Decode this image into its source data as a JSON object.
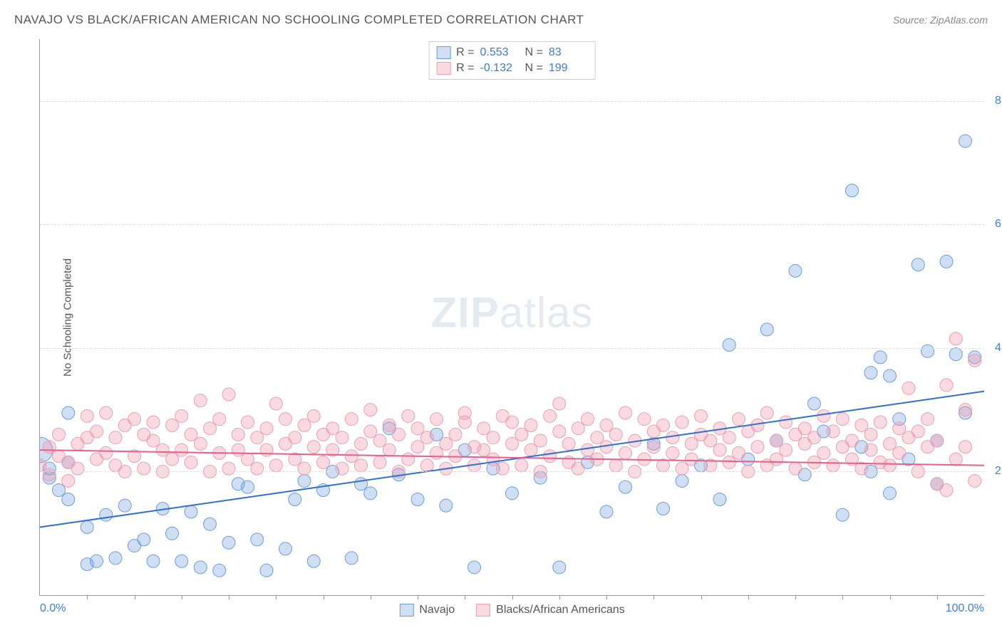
{
  "title": "NAVAJO VS BLACK/AFRICAN AMERICAN NO SCHOOLING COMPLETED CORRELATION CHART",
  "source": "Source: ZipAtlas.com",
  "ylabel": "No Schooling Completed",
  "watermark_bold": "ZIP",
  "watermark_rest": "atlas",
  "xlim": [
    0,
    100
  ],
  "ylim": [
    0,
    9
  ],
  "x_axis_label_left": "0.0%",
  "x_axis_label_right": "100.0%",
  "y_ticks": [
    {
      "v": 2.0,
      "label": "2.0%"
    },
    {
      "v": 4.0,
      "label": "4.0%"
    },
    {
      "v": 6.0,
      "label": "6.0%"
    },
    {
      "v": 8.0,
      "label": "8.0%"
    }
  ],
  "x_tick_count": 20,
  "grid_color": "#dddddd",
  "axis_color": "#999999",
  "background_color": "#ffffff",
  "series": [
    {
      "name": "Navajo",
      "label": "Navajo",
      "color_fill": "rgba(120,160,220,0.35)",
      "color_stroke": "#6a9edb",
      "marker_r": 9,
      "trend_color": "#2e6fd0",
      "trend_width": 2,
      "trend_y_at_xmin": 1.1,
      "trend_y_at_xmax": 3.3,
      "R": "0.553",
      "N": "83",
      "points": [
        [
          0,
          2.35,
          18
        ],
        [
          3,
          2.15
        ],
        [
          1,
          1.9
        ],
        [
          1,
          2.05
        ],
        [
          2,
          1.7
        ],
        [
          3,
          1.55
        ],
        [
          3,
          2.95
        ],
        [
          5,
          1.1
        ],
        [
          5,
          0.5
        ],
        [
          6,
          0.55
        ],
        [
          7,
          1.3
        ],
        [
          8,
          0.6
        ],
        [
          9,
          1.45
        ],
        [
          10,
          0.8
        ],
        [
          11,
          0.9
        ],
        [
          12,
          0.55
        ],
        [
          13,
          1.4
        ],
        [
          14,
          1.0
        ],
        [
          15,
          0.55
        ],
        [
          16,
          1.35
        ],
        [
          17,
          0.45
        ],
        [
          18,
          1.15
        ],
        [
          19,
          0.4
        ],
        [
          20,
          0.85
        ],
        [
          21,
          1.8
        ],
        [
          22,
          1.75
        ],
        [
          23,
          0.9
        ],
        [
          24,
          0.4
        ],
        [
          26,
          0.75
        ],
        [
          27,
          1.55
        ],
        [
          28,
          1.85
        ],
        [
          29,
          0.55
        ],
        [
          30,
          1.7
        ],
        [
          31,
          2.0
        ],
        [
          33,
          0.6
        ],
        [
          34,
          1.8
        ],
        [
          35,
          1.65
        ],
        [
          37,
          2.7
        ],
        [
          38,
          1.95
        ],
        [
          40,
          1.55
        ],
        [
          42,
          2.6
        ],
        [
          43,
          1.45
        ],
        [
          45,
          2.35
        ],
        [
          46,
          0.45
        ],
        [
          48,
          2.05
        ],
        [
          50,
          1.65
        ],
        [
          53,
          1.9
        ],
        [
          55,
          0.45
        ],
        [
          58,
          2.15
        ],
        [
          60,
          1.35
        ],
        [
          62,
          1.75
        ],
        [
          65,
          2.45
        ],
        [
          66,
          1.4
        ],
        [
          68,
          1.85
        ],
        [
          70,
          2.1
        ],
        [
          72,
          1.55
        ],
        [
          73,
          4.05
        ],
        [
          75,
          2.2
        ],
        [
          77,
          4.3
        ],
        [
          78,
          2.5
        ],
        [
          80,
          5.25
        ],
        [
          81,
          1.95
        ],
        [
          82,
          3.1
        ],
        [
          83,
          2.65
        ],
        [
          85,
          1.3
        ],
        [
          86,
          6.55
        ],
        [
          87,
          2.4
        ],
        [
          88,
          2.0
        ],
        [
          89,
          3.85
        ],
        [
          90,
          3.55
        ],
        [
          91,
          2.85
        ],
        [
          92,
          2.2
        ],
        [
          93,
          5.35
        ],
        [
          94,
          3.95
        ],
        [
          95,
          1.8
        ],
        [
          96,
          5.4
        ],
        [
          97,
          3.9
        ],
        [
          98,
          2.95
        ],
        [
          98,
          7.35
        ],
        [
          99,
          3.85
        ],
        [
          95,
          2.5
        ],
        [
          90,
          1.65
        ],
        [
          88,
          3.6
        ]
      ]
    },
    {
      "name": "Blacks/African Americans",
      "label": "Blacks/African Americans",
      "color_fill": "rgba(240,150,170,0.35)",
      "color_stroke": "#ea9fb3",
      "marker_r": 9,
      "trend_color": "#e65f8a",
      "trend_width": 2,
      "trend_y_at_xmin": 2.35,
      "trend_y_at_xmax": 2.1,
      "R": "-0.132",
      "N": "199",
      "points": [
        [
          0,
          2.1
        ],
        [
          1,
          2.4
        ],
        [
          1,
          1.95
        ],
        [
          2,
          2.25
        ],
        [
          2,
          2.6
        ],
        [
          3,
          1.85
        ],
        [
          3,
          2.15
        ],
        [
          4,
          2.05
        ],
        [
          4,
          2.45
        ],
        [
          5,
          2.55
        ],
        [
          5,
          2.9
        ],
        [
          6,
          2.2
        ],
        [
          6,
          2.65
        ],
        [
          7,
          2.3
        ],
        [
          7,
          2.95
        ],
        [
          8,
          2.1
        ],
        [
          8,
          2.55
        ],
        [
          9,
          2.0
        ],
        [
          9,
          2.75
        ],
        [
          10,
          2.25
        ],
        [
          10,
          2.85
        ],
        [
          11,
          2.6
        ],
        [
          11,
          2.05
        ],
        [
          12,
          2.5
        ],
        [
          12,
          2.8
        ],
        [
          13,
          2.35
        ],
        [
          13,
          2.0
        ],
        [
          14,
          2.75
        ],
        [
          14,
          2.2
        ],
        [
          15,
          2.9
        ],
        [
          15,
          2.35
        ],
        [
          16,
          2.6
        ],
        [
          16,
          2.15
        ],
        [
          17,
          3.15
        ],
        [
          17,
          2.45
        ],
        [
          18,
          2.7
        ],
        [
          18,
          2.0
        ],
        [
          19,
          2.85
        ],
        [
          19,
          2.3
        ],
        [
          20,
          3.25
        ],
        [
          20,
          2.05
        ],
        [
          21,
          2.6
        ],
        [
          21,
          2.35
        ],
        [
          22,
          2.8
        ],
        [
          22,
          2.2
        ],
        [
          23,
          2.05
        ],
        [
          23,
          2.55
        ],
        [
          24,
          2.35
        ],
        [
          24,
          2.7
        ],
        [
          25,
          2.1
        ],
        [
          25,
          3.1
        ],
        [
          26,
          2.45
        ],
        [
          26,
          2.85
        ],
        [
          27,
          2.2
        ],
        [
          27,
          2.55
        ],
        [
          28,
          2.75
        ],
        [
          28,
          2.05
        ],
        [
          29,
          2.4
        ],
        [
          29,
          2.9
        ],
        [
          30,
          2.6
        ],
        [
          30,
          2.15
        ],
        [
          31,
          2.35
        ],
        [
          31,
          2.7
        ],
        [
          32,
          2.05
        ],
        [
          32,
          2.55
        ],
        [
          33,
          2.85
        ],
        [
          33,
          2.25
        ],
        [
          34,
          2.45
        ],
        [
          34,
          2.1
        ],
        [
          35,
          2.65
        ],
        [
          35,
          3.0
        ],
        [
          36,
          2.15
        ],
        [
          36,
          2.5
        ],
        [
          37,
          2.35
        ],
        [
          37,
          2.75
        ],
        [
          38,
          2.0
        ],
        [
          38,
          2.6
        ],
        [
          39,
          2.9
        ],
        [
          39,
          2.2
        ],
        [
          40,
          2.4
        ],
        [
          40,
          2.7
        ],
        [
          41,
          2.1
        ],
        [
          41,
          2.55
        ],
        [
          42,
          2.3
        ],
        [
          42,
          2.85
        ],
        [
          43,
          2.45
        ],
        [
          43,
          2.05
        ],
        [
          44,
          2.6
        ],
        [
          44,
          2.25
        ],
        [
          45,
          2.8
        ],
        [
          45,
          2.95
        ],
        [
          46,
          2.4
        ],
        [
          46,
          2.1
        ],
        [
          47,
          2.7
        ],
        [
          47,
          2.35
        ],
        [
          48,
          2.2
        ],
        [
          48,
          2.55
        ],
        [
          49,
          2.9
        ],
        [
          49,
          2.05
        ],
        [
          50,
          2.45
        ],
        [
          50,
          2.8
        ],
        [
          51,
          2.1
        ],
        [
          51,
          2.6
        ],
        [
          52,
          2.35
        ],
        [
          52,
          2.75
        ],
        [
          53,
          2.0
        ],
        [
          53,
          2.5
        ],
        [
          54,
          2.25
        ],
        [
          54,
          2.9
        ],
        [
          55,
          2.65
        ],
        [
          55,
          3.1
        ],
        [
          56,
          2.15
        ],
        [
          56,
          2.45
        ],
        [
          57,
          2.7
        ],
        [
          57,
          2.05
        ],
        [
          58,
          2.35
        ],
        [
          58,
          2.85
        ],
        [
          59,
          2.2
        ],
        [
          59,
          2.55
        ],
        [
          60,
          2.4
        ],
        [
          60,
          2.75
        ],
        [
          61,
          2.1
        ],
        [
          61,
          2.6
        ],
        [
          62,
          2.3
        ],
        [
          62,
          2.95
        ],
        [
          63,
          2.5
        ],
        [
          63,
          2.0
        ],
        [
          64,
          2.85
        ],
        [
          64,
          2.2
        ],
        [
          65,
          2.65
        ],
        [
          65,
          2.4
        ],
        [
          66,
          2.1
        ],
        [
          66,
          2.75
        ],
        [
          67,
          2.3
        ],
        [
          67,
          2.55
        ],
        [
          68,
          2.05
        ],
        [
          68,
          2.8
        ],
        [
          69,
          2.45
        ],
        [
          69,
          2.2
        ],
        [
          70,
          2.6
        ],
        [
          70,
          2.9
        ],
        [
          71,
          2.1
        ],
        [
          71,
          2.5
        ],
        [
          72,
          2.35
        ],
        [
          72,
          2.7
        ],
        [
          73,
          2.15
        ],
        [
          73,
          2.55
        ],
        [
          74,
          2.85
        ],
        [
          74,
          2.3
        ],
        [
          75,
          2.0
        ],
        [
          75,
          2.65
        ],
        [
          76,
          2.4
        ],
        [
          76,
          2.75
        ],
        [
          77,
          2.1
        ],
        [
          77,
          2.95
        ],
        [
          78,
          2.5
        ],
        [
          78,
          2.2
        ],
        [
          79,
          2.8
        ],
        [
          79,
          2.35
        ],
        [
          80,
          2.6
        ],
        [
          80,
          2.05
        ],
        [
          81,
          2.45
        ],
        [
          81,
          2.7
        ],
        [
          82,
          2.15
        ],
        [
          82,
          2.55
        ],
        [
          83,
          2.9
        ],
        [
          83,
          2.3
        ],
        [
          84,
          2.1
        ],
        [
          84,
          2.65
        ],
        [
          85,
          2.4
        ],
        [
          85,
          2.85
        ],
        [
          86,
          2.2
        ],
        [
          86,
          2.5
        ],
        [
          87,
          2.75
        ],
        [
          87,
          2.05
        ],
        [
          88,
          2.6
        ],
        [
          88,
          2.35
        ],
        [
          89,
          2.15
        ],
        [
          89,
          2.8
        ],
        [
          90,
          2.45
        ],
        [
          90,
          2.1
        ],
        [
          91,
          2.7
        ],
        [
          91,
          2.3
        ],
        [
          92,
          2.55
        ],
        [
          92,
          3.35
        ],
        [
          93,
          2.0
        ],
        [
          93,
          2.65
        ],
        [
          94,
          2.4
        ],
        [
          94,
          2.85
        ],
        [
          95,
          1.8
        ],
        [
          95,
          2.5
        ],
        [
          96,
          1.7
        ],
        [
          96,
          3.4
        ],
        [
          97,
          2.2
        ],
        [
          97,
          4.15
        ],
        [
          98,
          3.0
        ],
        [
          98,
          2.4
        ],
        [
          99,
          3.8
        ],
        [
          99,
          1.85
        ]
      ]
    }
  ],
  "stats_box": {
    "rows": [
      {
        "swatch_fill": "rgba(120,160,220,0.35)",
        "swatch_stroke": "#6a9edb",
        "R_label": "R =",
        "R": "0.553",
        "N_label": "N =",
        "N": "83"
      },
      {
        "swatch_fill": "rgba(240,150,170,0.35)",
        "swatch_stroke": "#ea9fb3",
        "R_label": "R =",
        "R": "-0.132",
        "N_label": "N =",
        "N": "199"
      }
    ]
  },
  "legend_bottom": [
    {
      "swatch_fill": "rgba(120,160,220,0.35)",
      "swatch_stroke": "#6a9edb",
      "label": "Navajo"
    },
    {
      "swatch_fill": "rgba(240,150,170,0.35)",
      "swatch_stroke": "#ea9fb3",
      "label": "Blacks/African Americans"
    }
  ]
}
